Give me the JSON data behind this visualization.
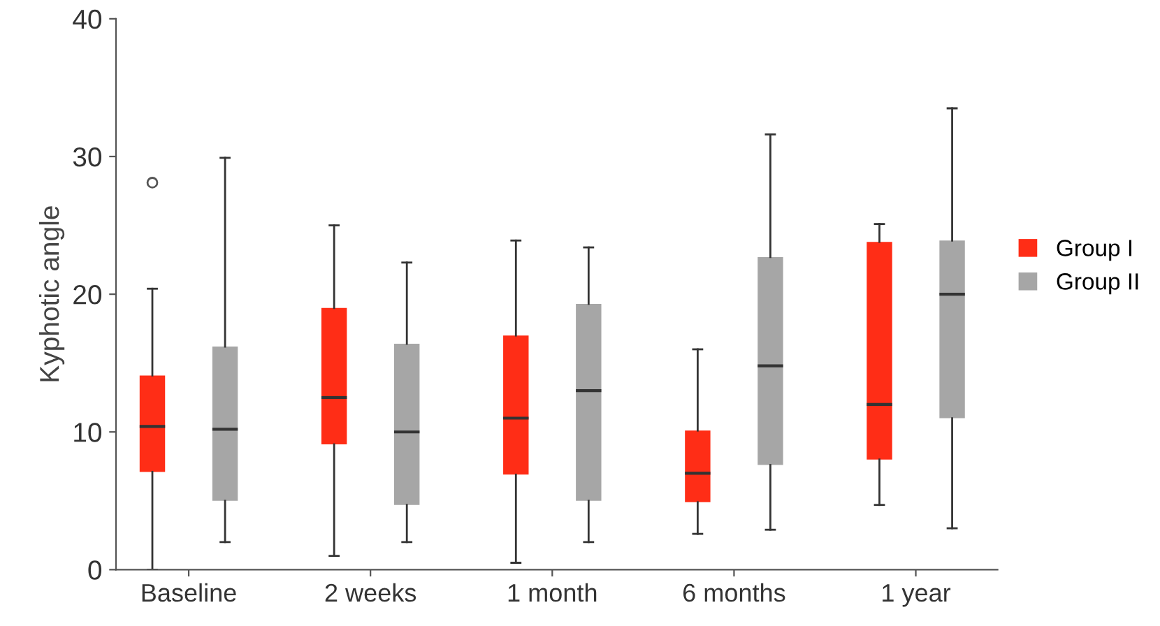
{
  "chart_data": {
    "type": "box",
    "ylabel": "Kyphotic angle",
    "categories": [
      "Baseline",
      "2 weeks",
      "1 month",
      "6 months",
      "1 year"
    ],
    "ylim": [
      0,
      40
    ],
    "yticks": [
      0,
      10,
      20,
      30,
      40
    ],
    "legend": "right",
    "grid": false,
    "series": [
      {
        "name": "Group I",
        "color": "#ff2d16",
        "boxes": [
          {
            "low": 0,
            "q1": 7.1,
            "median": 10.4,
            "q3": 14.1,
            "high": 20.4,
            "outliers": [
              28.1
            ]
          },
          {
            "low": 1.0,
            "q1": 9.1,
            "median": 12.5,
            "q3": 19.0,
            "high": 25.0
          },
          {
            "low": 0.5,
            "q1": 6.9,
            "median": 11.0,
            "q3": 17.0,
            "high": 23.9
          },
          {
            "low": 2.6,
            "q1": 4.9,
            "median": 7.0,
            "q3": 10.1,
            "high": 16.0
          },
          {
            "low": 4.7,
            "q1": 8.0,
            "median": 12.0,
            "q3": 23.8,
            "high": 25.1
          }
        ]
      },
      {
        "name": "Group II",
        "color": "#a6a6a6",
        "boxes": [
          {
            "low": 2.0,
            "q1": 5.0,
            "median": 10.2,
            "q3": 16.2,
            "high": 29.9
          },
          {
            "low": 2.0,
            "q1": 4.7,
            "median": 10.0,
            "q3": 16.4,
            "high": 22.3
          },
          {
            "low": 2.0,
            "q1": 5.0,
            "median": 13.0,
            "q3": 19.3,
            "high": 23.4
          },
          {
            "low": 2.9,
            "q1": 7.6,
            "median": 14.8,
            "q3": 22.7,
            "high": 31.6
          },
          {
            "low": 3.0,
            "q1": 11.0,
            "median": 20.0,
            "q3": 23.9,
            "high": 33.5
          }
        ]
      }
    ]
  }
}
